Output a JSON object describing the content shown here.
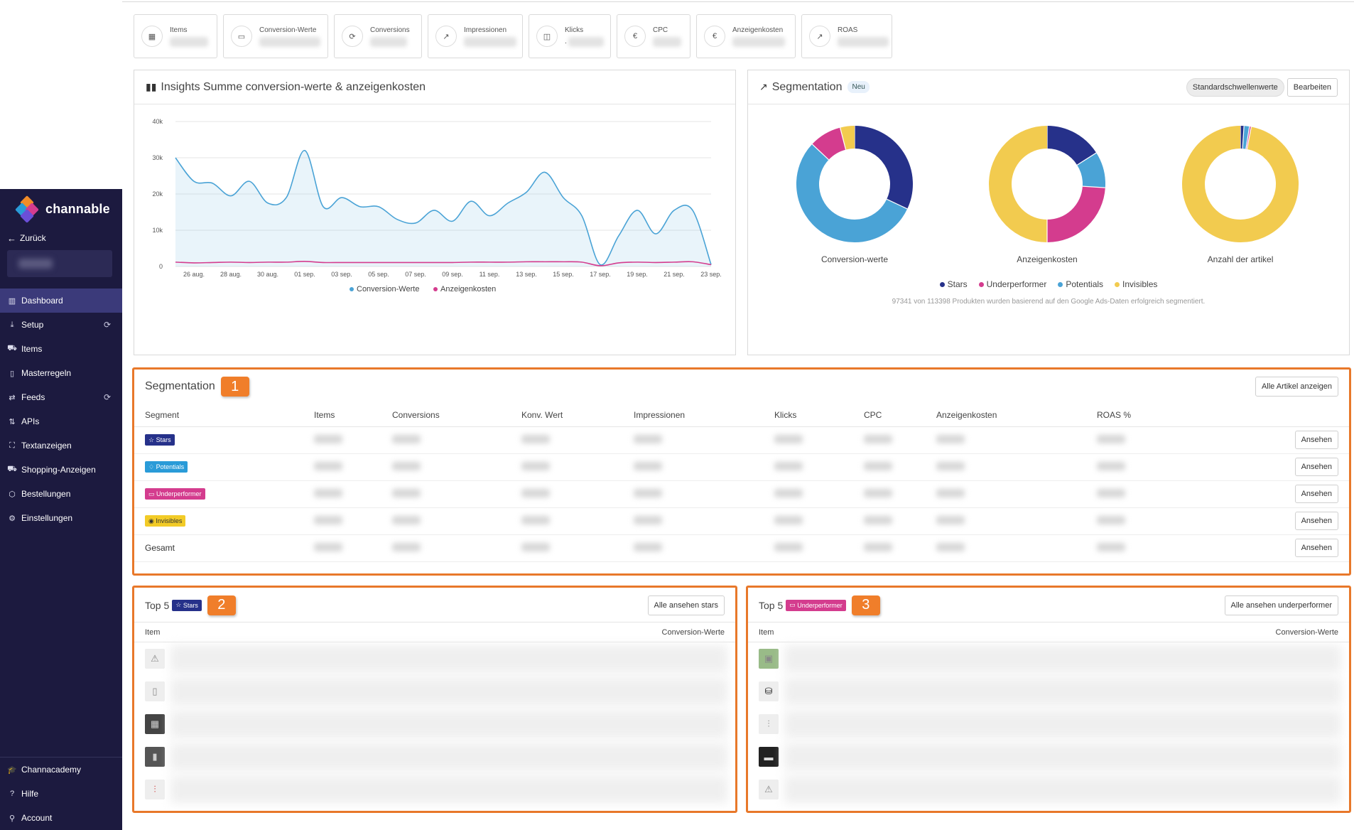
{
  "sidebar": {
    "brand": "channable",
    "back_label": "Zurück",
    "items": [
      {
        "label": "Dashboard",
        "icon": "chart-icon",
        "active": true
      },
      {
        "label": "Setup",
        "icon": "setup-icon",
        "sync": true
      },
      {
        "label": "Items",
        "icon": "cart-icon"
      },
      {
        "label": "Masterregeln",
        "icon": "clipboard-icon"
      },
      {
        "label": "Feeds",
        "icon": "arrows-icon",
        "sync": true
      },
      {
        "label": "APIs",
        "icon": "updown-icon"
      },
      {
        "label": "Textanzeigen",
        "icon": "brackets-icon"
      },
      {
        "label": "Shopping-Anzeigen",
        "icon": "cart-icon"
      },
      {
        "label": "Bestellungen",
        "icon": "box-icon"
      },
      {
        "label": "Einstellungen",
        "icon": "gear-icon"
      }
    ],
    "bottom": [
      {
        "label": "Channacademy",
        "icon": "academy-icon"
      },
      {
        "label": "Hilfe",
        "icon": "help-icon"
      },
      {
        "label": "Account",
        "icon": "user-icon"
      }
    ]
  },
  "kpis": [
    {
      "label": "Items",
      "icon": "calendar-icon"
    },
    {
      "label": "Conversion-Werte",
      "icon": "money-icon"
    },
    {
      "label": "Conversions",
      "icon": "refresh-icon"
    },
    {
      "label": "Impressionen",
      "icon": "trend-icon"
    },
    {
      "label": "Klicks",
      "icon": "mouse-icon",
      "value": "."
    },
    {
      "label": "CPC",
      "icon": "euro-icon"
    },
    {
      "label": "Anzeigenkosten",
      "icon": "euro-icon"
    },
    {
      "label": "ROAS",
      "icon": "trend-icon"
    }
  ],
  "insights": {
    "title": "Insights Summe conversion-werte & anzeigenkosten",
    "legend": [
      "Conversion-Werte",
      "Anzeigenkosten"
    ]
  },
  "chart_data": {
    "type": "area",
    "ylabel": "",
    "yticks": [
      "0",
      "10k",
      "20k",
      "30k",
      "40k"
    ],
    "ylim": [
      0,
      40000
    ],
    "xticks": [
      "26 aug.",
      "28 aug.",
      "30 aug.",
      "01 sep.",
      "03 sep.",
      "05 sep.",
      "07 sep.",
      "09 sep.",
      "11 sep.",
      "13 sep.",
      "15 sep.",
      "17 sep.",
      "19 sep.",
      "21 sep.",
      "23 sep."
    ],
    "x": [
      "25 aug.",
      "26 aug.",
      "27 aug.",
      "28 aug.",
      "29 aug.",
      "30 aug.",
      "31 aug.",
      "01 sep.",
      "02 sep.",
      "03 sep.",
      "04 sep.",
      "05 sep.",
      "06 sep.",
      "07 sep.",
      "08 sep.",
      "09 sep.",
      "10 sep.",
      "11 sep.",
      "12 sep.",
      "13 sep.",
      "14 sep.",
      "15 sep.",
      "16 sep.",
      "17 sep.",
      "18 sep.",
      "19 sep.",
      "20 sep.",
      "21 sep.",
      "22 sep.",
      "23 sep."
    ],
    "grid": true,
    "series": [
      {
        "name": "Conversion-Werte",
        "color": "#4aa3d6",
        "values": [
          30000,
          23500,
          23000,
          19500,
          23500,
          17500,
          19000,
          32000,
          16500,
          19000,
          16500,
          16500,
          13000,
          12000,
          15500,
          12500,
          18000,
          14000,
          17500,
          20500,
          26000,
          19000,
          14000,
          500,
          8500,
          15500,
          9000,
          15500,
          15500,
          500
        ]
      },
      {
        "name": "Anzeigenkosten",
        "color": "#d43c8e",
        "values": [
          1200,
          1000,
          1100,
          1200,
          1100,
          1200,
          1200,
          1400,
          1100,
          1100,
          1100,
          1100,
          1100,
          1100,
          1100,
          1100,
          1200,
          1200,
          1200,
          1300,
          1300,
          1300,
          1200,
          200,
          1000,
          1200,
          1100,
          1200,
          1300,
          500
        ]
      }
    ]
  },
  "segmentation_donuts": {
    "title": "Segmentation",
    "badge": "Neu",
    "btn_default": "Standardschwellenwerte",
    "btn_edit": "Bearbeiten",
    "charts": [
      {
        "label": "Conversion-werte",
        "slices": [
          {
            "name": "Stars",
            "value": 32,
            "color": "#26318a"
          },
          {
            "name": "Potentials",
            "value": 55,
            "color": "#4aa3d6"
          },
          {
            "name": "Underperformer",
            "value": 9,
            "color": "#d43c8e"
          },
          {
            "name": "Invisibles",
            "value": 4,
            "color": "#f2cb4f"
          }
        ]
      },
      {
        "label": "Anzeigenkosten",
        "slices": [
          {
            "name": "Stars",
            "value": 16,
            "color": "#26318a"
          },
          {
            "name": "Potentials",
            "value": 10,
            "color": "#4aa3d6"
          },
          {
            "name": "Underperformer",
            "value": 24,
            "color": "#d43c8e"
          },
          {
            "name": "Invisibles",
            "value": 50,
            "color": "#f2cb4f"
          }
        ]
      },
      {
        "label": "Anzahl der artikel",
        "slices": [
          {
            "name": "Stars",
            "value": 1,
            "color": "#26318a"
          },
          {
            "name": "Potentials",
            "value": 1.5,
            "color": "#4aa3d6"
          },
          {
            "name": "Underperformer",
            "value": 0.5,
            "color": "#d43c8e"
          },
          {
            "name": "Invisibles",
            "value": 97,
            "color": "#f2cb4f"
          }
        ]
      }
    ],
    "legend": [
      {
        "name": "Stars",
        "color": "#26318a"
      },
      {
        "name": "Underperformer",
        "color": "#d43c8e"
      },
      {
        "name": "Potentials",
        "color": "#4aa3d6"
      },
      {
        "name": "Invisibles",
        "color": "#f2cb4f"
      }
    ],
    "footnote": "97341 von 113398 Produkten wurden basierend auf den Google Ads-Daten erfolgreich segmentiert."
  },
  "segmentation_table": {
    "title": "Segmentation",
    "marker": "1",
    "btn_all": "Alle Artikel anzeigen",
    "columns": [
      "Segment",
      "Items",
      "Conversions",
      "Konv. Wert",
      "Impressionen",
      "Klicks",
      "CPC",
      "Anzeigenkosten",
      "ROAS %"
    ],
    "rows": [
      {
        "segment": "Stars",
        "tag": "stars",
        "icon": "star-icon"
      },
      {
        "segment": "Potentials",
        "tag": "potentials",
        "icon": "bulb-icon"
      },
      {
        "segment": "Underperformer",
        "tag": "under",
        "icon": "folder-icon"
      },
      {
        "segment": "Invisibles",
        "tag": "invis",
        "icon": "eye-icon"
      },
      {
        "segment": "Gesamt",
        "tag": "",
        "icon": ""
      }
    ],
    "view_label": "Ansehen"
  },
  "top5_stars": {
    "prefix": "Top 5",
    "tag": "Stars",
    "marker": "2",
    "btn": "Alle ansehen stars",
    "col_item": "Item",
    "col_value": "Conversion-Werte",
    "rows": [
      "warning",
      "bottle",
      "grill",
      "fridge",
      "tools"
    ]
  },
  "top5_under": {
    "prefix": "Top 5",
    "tag": "Underperformer",
    "marker": "3",
    "btn": "Alle ansehen underperformer",
    "col_item": "Item",
    "col_value": "Conversion-Werte",
    "rows": [
      "photo",
      "bag",
      "tools",
      "case",
      "warning"
    ]
  }
}
